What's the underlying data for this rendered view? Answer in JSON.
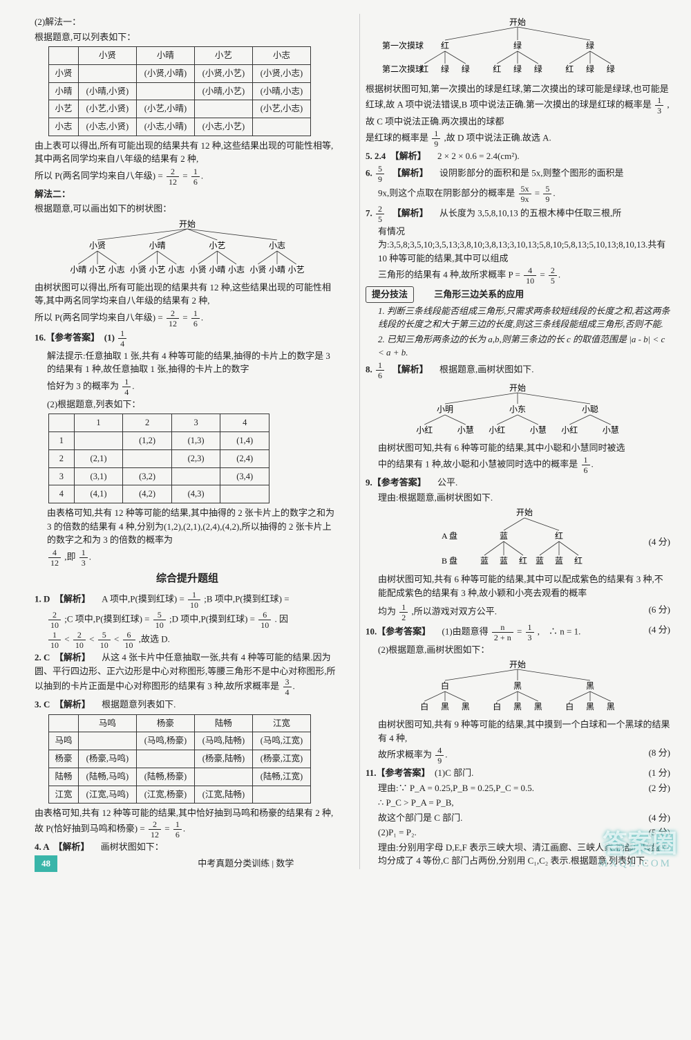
{
  "page_number": "48",
  "footer": "中考真题分类训练 | 数学",
  "watermark_main": "答案圈",
  "watermark_sub": "MXQE.COM",
  "left": {
    "sec2_title": "(2)解法一：",
    "sec2_line1": "根据题意,可以列表如下：",
    "table1": {
      "head": [
        "",
        "小贤",
        "小晴",
        "小艺",
        "小志"
      ],
      "rows": [
        [
          "小贤",
          "",
          "(小贤,小晴)",
          "(小贤,小艺)",
          "(小贤,小志)"
        ],
        [
          "小晴",
          "(小晴,小贤)",
          "",
          "(小晴,小艺)",
          "(小晴,小志)"
        ],
        [
          "小艺",
          "(小艺,小贤)",
          "(小艺,小晴)",
          "",
          "(小艺,小志)"
        ],
        [
          "小志",
          "(小志,小贤)",
          "(小志,小晴)",
          "(小志,小艺)",
          ""
        ]
      ]
    },
    "after_t1_a": "由上表可以得出,所有可能出现的结果共有 12 种,这些结果出现的可能性相等,其中两名同学均来自八年级的结果有 2 种,",
    "after_t1_b": "所以 P(两名同学均来自八年级) = ",
    "frac_2_12": {
      "num": "2",
      "den": "12"
    },
    "eq": " = ",
    "frac_1_6": {
      "num": "1",
      "den": "6"
    },
    "method2": "解法二：",
    "method2_l1": "根据题意,可以画出如下的树状图：",
    "tree1": {
      "root": "开始",
      "level1": [
        "小贤",
        "小晴",
        "小艺",
        "小志"
      ],
      "leaves": [
        [
          "小晴",
          "小艺",
          "小志"
        ],
        [
          "小贤",
          "小艺",
          "小志"
        ],
        [
          "小贤",
          "小晴",
          "小志"
        ],
        [
          "小贤",
          "小晴",
          "小艺"
        ]
      ]
    },
    "m2_summary": "由树状图可以得出,所有可能出现的结果共有 12 种,这些结果出现的可能性相等,其中两名同学均来自八年级的结果有 2 种,",
    "m2_conc": "所以 P(两名同学均来自八年级) = ",
    "q16_head": "16.【参考答案】　(1)",
    "frac_1_4": {
      "num": "1",
      "den": "4"
    },
    "q16_exp1": "解法提示:任意抽取 1 张,共有 4 种等可能的结果,抽得的卡片上的数字是 3 的结果有 1 种,故任意抽取 1 张,抽得的卡片上的数字",
    "q16_exp2": "恰好为 3 的概率为",
    "q16_2": "(2)根据题意,列表如下：",
    "table2": {
      "head": [
        "",
        "1",
        "2",
        "3",
        "4"
      ],
      "rows": [
        [
          "1",
          "",
          "(1,2)",
          "(1,3)",
          "(1,4)"
        ],
        [
          "2",
          "(2,1)",
          "",
          "(2,3)",
          "(2,4)"
        ],
        [
          "3",
          "(3,1)",
          "(3,2)",
          "",
          "(3,4)"
        ],
        [
          "4",
          "(4,1)",
          "(4,2)",
          "(4,3)",
          ""
        ]
      ]
    },
    "q16_after1": "由表格可知,共有 12 种等可能的结果,其中抽得的 2 张卡片上的数字之和为 3 的倍数的结果有 4 种,分别为(1,2),(2,1),(2,4),(4,2),所以抽得的 2 张卡片上的数字之和为 3 的倍数的概率为",
    "frac_4_12": {
      "num": "4",
      "den": "12"
    },
    "q16_after2": ",即",
    "frac_1_3": {
      "num": "1",
      "den": "3"
    },
    "section_title": "综合提升题组",
    "q1_head": "1. D　【解析】",
    "q1_body_a": "　A 项中,P(摸到红球) = ",
    "frac_1_10": {
      "num": "1",
      "den": "10"
    },
    "q1_body_b": ";B 项中,P(摸到红球) = ",
    "frac_2_10": {
      "num": "2",
      "den": "10"
    },
    "q1_body_c": ";C 项中,P(摸到红球) = ",
    "frac_5_10": {
      "num": "5",
      "den": "10"
    },
    "q1_body_d": ";D 项中,P(摸到红球) = ",
    "frac_6_10": {
      "num": "6",
      "den": "10"
    },
    "q1_body_e": ". 因 ",
    "q1_conc": ",故选 D.",
    "q2_head": "2. C　【解析】",
    "q2_body": "　从这 4 张卡片中任意抽取一张,共有 4 种等可能的结果.因为圆、平行四边形、正六边形是中心对称图形,等腰三角形不是中心对称图形,所以抽到的卡片正面是中心对称图形的结果有 3 种,故所求概率是",
    "frac_3_4": {
      "num": "3",
      "den": "4"
    },
    "q3_head": "3. C　【解析】",
    "q3_body": "　根据题意列表如下.",
    "table3": {
      "head": [
        "",
        "马鸣",
        "杨豪",
        "陆畅",
        "江宽"
      ],
      "rows": [
        [
          "马鸣",
          "",
          "(马鸣,杨豪)",
          "(马鸣,陆畅)",
          "(马鸣,江宽)"
        ],
        [
          "杨豪",
          "(杨豪,马鸣)",
          "",
          "(杨豪,陆畅)",
          "(杨豪,江宽)"
        ],
        [
          "陆畅",
          "(陆畅,马鸣)",
          "(陆畅,杨豪)",
          "",
          "(陆畅,江宽)"
        ],
        [
          "江宽",
          "(江宽,马鸣)",
          "(江宽,杨豪)",
          "(江宽,陆畅)",
          ""
        ]
      ]
    },
    "q3_after": "由表格可知,共有 12 种等可能的结果,其中恰好抽到马鸣和杨豪的结果有 2 种,故 P(恰好抽到马鸣和杨豪) = ",
    "q4_head": "4. A　【解析】",
    "q4_body": "　画树状图如下："
  },
  "right": {
    "tree_top": {
      "labels_row1": "第一次摸球",
      "labels_row2": "第二次摸球",
      "root": "开始",
      "level1": [
        "红",
        "绿",
        "绿"
      ],
      "leaves": [
        [
          "红",
          "绿",
          "绿"
        ],
        [
          "红",
          "绿",
          "绿"
        ],
        [
          "红",
          "绿",
          "绿"
        ]
      ]
    },
    "q4_explain_a": "根据树状图可知,第一次摸出的球是红球,第二次摸出的球可能是绿球,也可能是红球,故 A 项中说法错误,B 项中说法正确.第一次摸出的球是红球的概率是",
    "q4_explain_b": ",故 C 项中说法正确.两次摸出的球都",
    "q4_explain_c": "是红球的概率是",
    "frac_1_9": {
      "num": "1",
      "den": "9"
    },
    "q4_explain_d": ",故 D 项中说法正确.故选 A.",
    "q5_head": "5. 2.4　【解析】",
    "q5_body": "　2 × 2 × 0.6 = 2.4(cm²).",
    "q6_head": "6. ",
    "frac_5_9": {
      "num": "5",
      "den": "9"
    },
    "q6_lbl": "　【解析】",
    "q6_body_a": "　设阴影部分的面积和是 5x,则整个图形的面积是",
    "q6_body_b": "9x,则这个点取在阴影部分的概率是",
    "frac_5x_9x": {
      "num": "5x",
      "den": "9x"
    },
    "q7_head": "7. ",
    "frac_2_5": {
      "num": "2",
      "den": "5"
    },
    "q7_lbl": "　【解析】",
    "q7_body_a": "　从长度为 3,5,8,10,13 的五根木棒中任取三根,所",
    "q7_body_b": "有情况为:3,5,8;3,5,10;3,5,13;3,8,10;3,8,13;3,10,13;5,8,10;5,8,13;5,10,13;8,10,13.共有 10 种等可能的结果,其中可以组成",
    "q7_body_c": "三角形的结果有 4 种,故所求概率 P = ",
    "frac_4_10": {
      "num": "4",
      "den": "10"
    },
    "tip_head": "提分技法",
    "tip_title": "三角形三边关系的应用",
    "tip1": "1. 判断三条线段能否组成三角形,只需求两条较短线段的长度之和,若这两条线段的长度之和大于第三边的长度,则这三条线段能组成三角形,否则不能.",
    "tip2": "2. 已知三角形两条边的长为 a,b,则第三条边的长 c 的取值范围是 |a - b| < c < a + b.",
    "q8_head": "8. ",
    "frac_1_6r": {
      "num": "1",
      "den": "6"
    },
    "q8_lbl": "　【解析】",
    "q8_body": "　根据题意,画树状图如下.",
    "tree8": {
      "root": "开始",
      "level1": [
        "小明",
        "小东",
        "小聪"
      ],
      "leaves": [
        [
          "小红",
          "小慧"
        ],
        [
          "小红",
          "小慧"
        ],
        [
          "小红",
          "小慧"
        ]
      ]
    },
    "q8_after_a": "由树状图可知,共有 6 种等可能的结果,其中小聪和小慧同时被选",
    "q8_after_b": "中的结果有 1 种,故小聪和小慧被同时选中的概率是",
    "q9_head": "9.【参考答案】",
    "q9_ans": "　公平.",
    "q9_l1": "理由:根据题意,画树状图如下.",
    "tree9": {
      "root": "开始",
      "label_a": "A 盘",
      "label_b": "B 盘",
      "level1": [
        "蓝",
        "红"
      ],
      "leaves": [
        [
          "蓝",
          "蓝",
          "红"
        ],
        [
          "蓝",
          "蓝",
          "红"
        ]
      ]
    },
    "q9_score1": "(4 分)",
    "q9_after_a": "由树状图可知,共有 6 种等可能的结果,其中可以配成紫色的结果有 3 种,不能配成紫色的结果有 3 种,故小颖和小亮去观看的概率",
    "q9_after_b": "均为",
    "frac_1_2": {
      "num": "1",
      "den": "2"
    },
    "q9_after_c": ",所以游戏对双方公平.",
    "q9_score2": "(6 分)",
    "q10_head": "10.【参考答案】",
    "q10_a": "　(1)由题意得",
    "frac_n_2n": {
      "num": "n",
      "den": "2 + n"
    },
    "q10_a2": " = ",
    "frac_1_3r": {
      "num": "1",
      "den": "3"
    },
    "q10_a3": ",　∴ n = 1.",
    "q10_s1": "(4 分)",
    "q10_b": "(2)根据题意,画树状图如下：",
    "tree10": {
      "root": "开始",
      "level1": [
        "白",
        "黑",
        "黑"
      ],
      "leaves": [
        [
          "白",
          "黑",
          "黑"
        ],
        [
          "白",
          "黑",
          "黑"
        ],
        [
          "白",
          "黑",
          "黑"
        ]
      ]
    },
    "q10_after_a": "由树状图可知,共有 9 种等可能的结果,其中摸到一个白球和一个黑球的结果有 4 种,",
    "q10_after_b": "故所求概率为",
    "frac_4_9": {
      "num": "4",
      "den": "9"
    },
    "q10_s2": "(8 分)",
    "q11_head": "11.【参考答案】",
    "q11_a": "　(1)C 部门.",
    "q11_s1": "(1 分)",
    "q11_l1": "理由:∵ P_A = 0.25,P_B = 0.25,P_C = 0.5.",
    "q11_s2": "(2 分)",
    "q11_l2": "∴ P_C > P_A = P_B,",
    "q11_l3": "故这个部门是 C 部门.",
    "q11_s3": "(4 分)",
    "q11_l4": "(2)P₁ = P₂.",
    "q11_s4": "(5 分)",
    "q11_l5": "理由:分别用字母 D,E,F 表示三峡大坝、清江画廊、三峡人家.视部门转盘平均分成了 4 等份,C 部门占两份,分别用 C₁,C₂ 表示.根据题意,列表如下."
  },
  "colors": {
    "accent": "#39b5a9",
    "text": "#222222",
    "border": "#333333",
    "bg": "#f5f5f3"
  }
}
